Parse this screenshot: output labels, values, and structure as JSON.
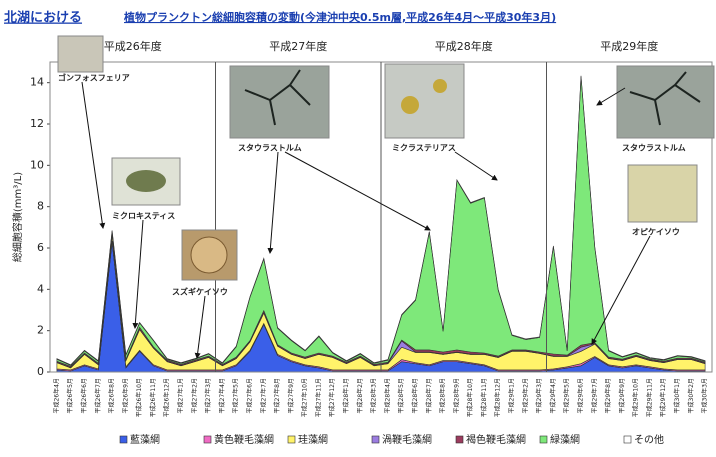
{
  "chart_data": {
    "type": "area",
    "stacked": true,
    "title_prefix": "北湖における",
    "title": "植物プランクトン総細胞容積の変動(今津沖中央0.5m層,平成26年4月～平成30年3月)",
    "y_label": "総細胞容積(mm³/L)",
    "year_labels": [
      "平成26年度",
      "平成27年度",
      "平成28年度",
      "平成29年度"
    ],
    "categories": [
      "平成26年4月",
      "平成26年5月",
      "平成26年6月",
      "平成26年7月",
      "平成26年8月",
      "平成26年9月",
      "平成26年10月",
      "平成26年11月",
      "平成26年12月",
      "平成27年1月",
      "平成27年2月",
      "平成27年3月",
      "平成27年4月",
      "平成27年5月",
      "平成27年6月",
      "平成27年7月",
      "平成27年8月",
      "平成27年9月",
      "平成27年10月",
      "平成27年11月",
      "平成27年12月",
      "平成28年1月",
      "平成28年2月",
      "平成28年3月",
      "平成28年4月",
      "平成28年5月",
      "平成28年6月",
      "平成28年7月",
      "平成28年8月",
      "平成28年9月",
      "平成28年10月",
      "平成28年11月",
      "平成28年12月",
      "平成29年1月",
      "平成29年2月",
      "平成29年3月",
      "平成29年4月",
      "平成29年5月",
      "平成29年6月",
      "平成29年7月",
      "平成29年8月",
      "平成29年9月",
      "平成29年10月",
      "平成29年11月",
      "平成29年12月",
      "平成30年1月",
      "平成30年2月",
      "平成30年3月"
    ],
    "series": [
      {
        "name": "藍藻綱",
        "color": "#3a5fe8",
        "values": [
          0.1,
          0.05,
          0.3,
          0.1,
          6.3,
          0.2,
          1.0,
          0.3,
          0.05,
          0.05,
          0.05,
          0.05,
          0.05,
          0.3,
          1.0,
          2.3,
          0.8,
          0.5,
          0.3,
          0.2,
          0.05,
          0.05,
          0.05,
          0.05,
          0.05,
          0.5,
          0.4,
          0.3,
          0.5,
          0.5,
          0.4,
          0.3,
          0.05,
          0.05,
          0.05,
          0.05,
          0.1,
          0.2,
          0.3,
          0.7,
          0.3,
          0.2,
          0.3,
          0.2,
          0.1,
          0.05,
          0.05,
          0.05
        ]
      },
      {
        "name": "黄色鞭毛藻綱",
        "color": "#f06bc4",
        "values": [
          0.05,
          0.05,
          0.05,
          0.05,
          0.05,
          0.05,
          0.05,
          0.05,
          0.05,
          0.05,
          0.05,
          0.05,
          0.05,
          0.05,
          0.05,
          0.05,
          0.05,
          0.05,
          0.05,
          0.05,
          0.05,
          0.05,
          0.05,
          0.05,
          0.05,
          0.1,
          0.05,
          0.05,
          0.05,
          0.05,
          0.05,
          0.05,
          0.05,
          0.05,
          0.05,
          0.05,
          0.05,
          0.05,
          0.1,
          0.05,
          0.05,
          0.05,
          0.05,
          0.05,
          0.05,
          0.05,
          0.05,
          0.05
        ]
      },
      {
        "name": "珪藻綱",
        "color": "#fff36a",
        "values": [
          0.3,
          0.1,
          0.5,
          0.2,
          0.3,
          0.3,
          1.0,
          0.8,
          0.4,
          0.2,
          0.4,
          0.6,
          0.2,
          0.3,
          0.4,
          0.5,
          0.4,
          0.3,
          0.3,
          0.6,
          0.6,
          0.3,
          0.6,
          0.2,
          0.3,
          0.6,
          0.5,
          0.6,
          0.3,
          0.4,
          0.4,
          0.5,
          0.6,
          0.9,
          0.9,
          0.8,
          0.6,
          0.5,
          0.6,
          0.6,
          0.3,
          0.3,
          0.4,
          0.3,
          0.3,
          0.5,
          0.5,
          0.3
        ]
      },
      {
        "name": "渦鞭毛藻綱",
        "color": "#9b7ce0",
        "values": [
          0.02,
          0.02,
          0.02,
          0.02,
          0.02,
          0.02,
          0.02,
          0.02,
          0.02,
          0.02,
          0.02,
          0.02,
          0.02,
          0.02,
          0.02,
          0.02,
          0.02,
          0.02,
          0.02,
          0.02,
          0.02,
          0.02,
          0.02,
          0.02,
          0.02,
          0.3,
          0.02,
          0.02,
          0.02,
          0.02,
          0.02,
          0.02,
          0.02,
          0.02,
          0.02,
          0.02,
          0.02,
          0.02,
          0.2,
          0.02,
          0.02,
          0.02,
          0.02,
          0.02,
          0.02,
          0.02,
          0.02,
          0.02
        ]
      },
      {
        "name": "褐色鞭毛藻綱",
        "color": "#9c3b5e",
        "values": [
          0.05,
          0.05,
          0.05,
          0.05,
          0.05,
          0.05,
          0.1,
          0.05,
          0.05,
          0.05,
          0.05,
          0.05,
          0.05,
          0.05,
          0.05,
          0.1,
          0.05,
          0.05,
          0.05,
          0.05,
          0.05,
          0.05,
          0.05,
          0.05,
          0.05,
          0.05,
          0.1,
          0.1,
          0.1,
          0.1,
          0.1,
          0.05,
          0.05,
          0.05,
          0.05,
          0.05,
          0.1,
          0.05,
          0.1,
          0.05,
          0.05,
          0.05,
          0.05,
          0.05,
          0.05,
          0.05,
          0.05,
          0.05
        ]
      },
      {
        "name": "緑藻綱",
        "color": "#7ee87a",
        "values": [
          0.1,
          0.05,
          0.1,
          0.1,
          0.1,
          0.2,
          0.2,
          0.3,
          0.05,
          0.05,
          0.05,
          0.1,
          0.05,
          0.5,
          2.1,
          2.5,
          0.8,
          0.6,
          0.3,
          0.8,
          0.15,
          0.05,
          0.1,
          0.05,
          0.1,
          1.2,
          2.4,
          5.7,
          1.0,
          8.2,
          7.2,
          7.5,
          3.2,
          0.7,
          0.5,
          0.7,
          5.2,
          0.2,
          13.0,
          4.6,
          0.3,
          0.1,
          0.1,
          0.05,
          0.05,
          0.1,
          0.05,
          0.05
        ]
      },
      {
        "name": "その他",
        "color": "#ffffff",
        "values": [
          0.03,
          0.03,
          0.03,
          0.03,
          0.03,
          0.03,
          0.03,
          0.03,
          0.03,
          0.03,
          0.03,
          0.03,
          0.03,
          0.03,
          0.03,
          0.03,
          0.03,
          0.03,
          0.03,
          0.03,
          0.03,
          0.03,
          0.03,
          0.03,
          0.03,
          0.03,
          0.03,
          0.03,
          0.03,
          0.03,
          0.03,
          0.03,
          0.03,
          0.03,
          0.03,
          0.03,
          0.03,
          0.03,
          0.03,
          0.03,
          0.03,
          0.03,
          0.03,
          0.03,
          0.03,
          0.03,
          0.03,
          0.03
        ]
      }
    ],
    "ylim": [
      0,
      15
    ],
    "yticks": [
      0,
      2,
      4,
      6,
      8,
      10,
      12,
      14
    ],
    "annotations": [
      "ゴンフォスフェリア",
      "ミクロキスティス",
      "スズギケイソウ",
      "スタウラストルム",
      "ミクラステリアス",
      "スタウラストルム",
      "オピケイソウ"
    ]
  }
}
